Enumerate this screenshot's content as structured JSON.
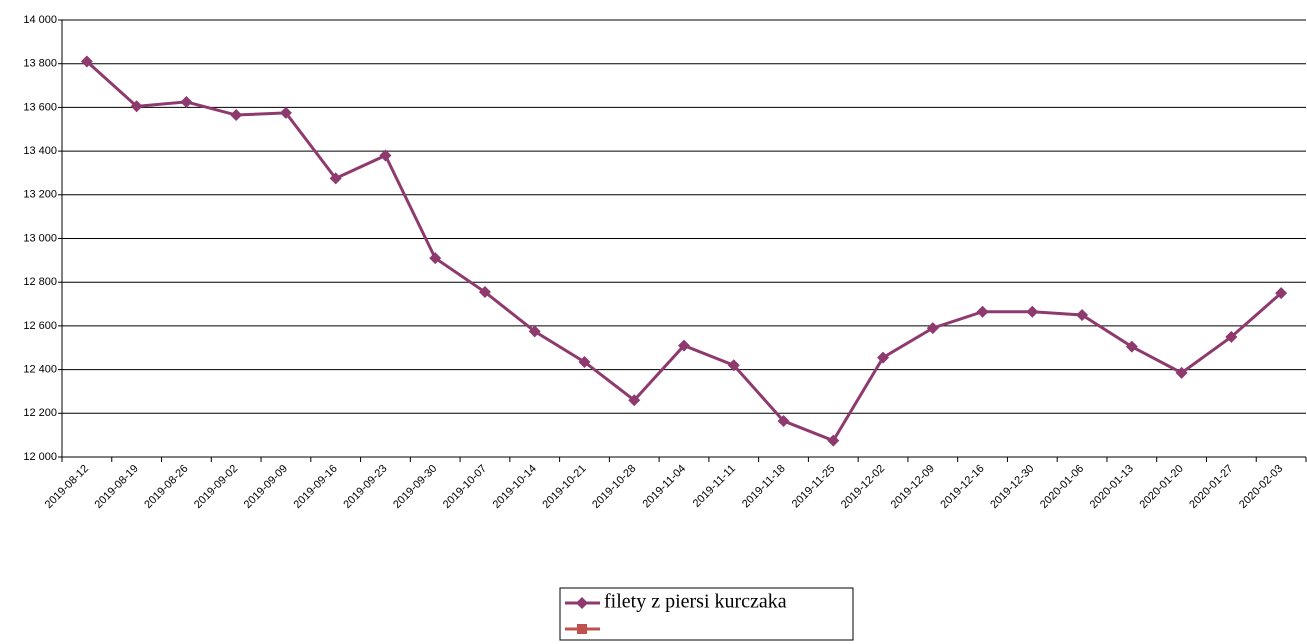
{
  "chart_data": {
    "type": "line",
    "categories": [
      "2019-08-12",
      "2019-08-19",
      "2019-08-26",
      "2019-09-02",
      "2019-09-09",
      "2019-09-16",
      "2019-09-23",
      "2019-09-30",
      "2019-10-07",
      "2019-10-14",
      "2019-10-21",
      "2019-10-28",
      "2019-11-04",
      "2019-11-11",
      "2019-11-18",
      "2019-11-25",
      "2019-12-02",
      "2019-12-09",
      "2019-12-16",
      "2019-12-30",
      "2020-01-06",
      "2020-01-13",
      "2020-01-20",
      "2020-01-27",
      "2020-02-03"
    ],
    "series": [
      {
        "name": "filety z piersi kurczaka",
        "color": "#8e3a6e",
        "marker": "diamond",
        "values": [
          13810,
          13605,
          13625,
          13565,
          13575,
          13275,
          13380,
          12910,
          12755,
          12575,
          12435,
          12260,
          12510,
          12420,
          12165,
          12075,
          12455,
          12590,
          12665,
          12665,
          12650,
          12505,
          12385,
          12550,
          12750
        ]
      },
      {
        "color": "#c0504d",
        "marker": "square",
        "values": [
          null,
          null,
          null,
          null,
          null,
          null,
          null,
          null,
          null,
          null,
          null,
          null,
          null,
          null,
          null,
          null,
          null,
          null,
          null,
          null,
          null,
          null,
          null,
          null,
          null
        ]
      }
    ],
    "ylim": [
      12000,
      14000
    ],
    "yticks": [
      {
        "value": 12000,
        "label": "12 000"
      },
      {
        "value": 12200,
        "label": "12 200"
      },
      {
        "value": 12400,
        "label": "12 400"
      },
      {
        "value": 12600,
        "label": "12 600"
      },
      {
        "value": 12800,
        "label": "12 800"
      },
      {
        "value": 13000,
        "label": "13 000"
      },
      {
        "value": 13200,
        "label": "13 200"
      },
      {
        "value": 13400,
        "label": "13 400"
      },
      {
        "value": 13600,
        "label": "13 600"
      },
      {
        "value": 13800,
        "label": "13 800"
      },
      {
        "value": 14000,
        "label": "14 000"
      }
    ],
    "grid": true,
    "legend": "bottom"
  }
}
